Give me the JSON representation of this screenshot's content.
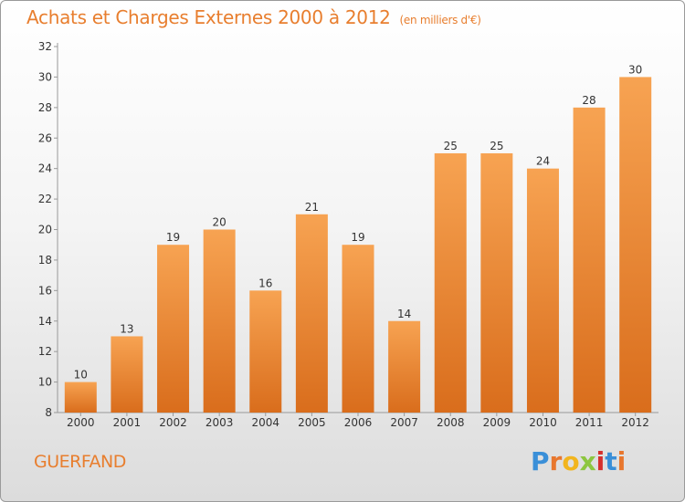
{
  "header": {
    "title": "Achats et Charges Externes 2000 à 2012",
    "subtitle": "(en milliers d'€)"
  },
  "footer": {
    "commune": "GUERFAND",
    "logo_letters": [
      "P",
      "r",
      "o",
      "x",
      "i",
      "t",
      "i"
    ],
    "logo_colors": [
      "#3a8fd8",
      "#e8772e",
      "#f2b51e",
      "#8dc63f",
      "#d6302c",
      "#3a8fd8",
      "#e8772e"
    ]
  },
  "colors": {
    "bar_light": "#f7a352",
    "bar_dark": "#d96d1c",
    "title": "#e87e2e"
  },
  "chart_data": {
    "type": "bar",
    "title": "Achats et Charges Externes 2000 à 2012",
    "subtitle": "(en milliers d'€)",
    "xlabel": "",
    "ylabel": "",
    "categories": [
      "2000",
      "2001",
      "2002",
      "2003",
      "2004",
      "2005",
      "2006",
      "2007",
      "2008",
      "2009",
      "2010",
      "2011",
      "2012"
    ],
    "values": [
      10,
      13,
      19,
      20,
      16,
      21,
      19,
      14,
      25,
      25,
      24,
      28,
      30
    ],
    "ylim": [
      8,
      32
    ],
    "yticks": [
      8,
      10,
      12,
      14,
      16,
      18,
      20,
      22,
      24,
      26,
      28,
      30,
      32
    ],
    "grid": false,
    "legend": "none"
  }
}
